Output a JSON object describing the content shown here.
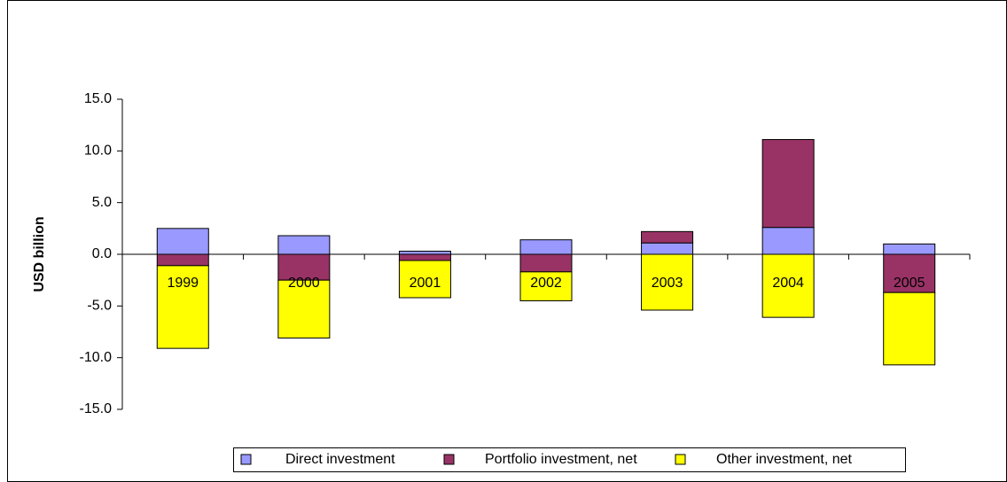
{
  "chart_data": {
    "type": "bar",
    "stacked": true,
    "y_label": "USD billion",
    "categories": [
      "1999",
      "2000",
      "2001",
      "2002",
      "2003",
      "2004",
      "2005"
    ],
    "series": [
      {
        "name": "Direct investment",
        "color": "#9999ff",
        "values": [
          2.5,
          1.8,
          0.3,
          1.4,
          1.1,
          2.6,
          1.0
        ]
      },
      {
        "name": "Portfolio investment, net",
        "color": "#993366",
        "values": [
          -1.1,
          -2.5,
          -0.6,
          -1.7,
          1.1,
          8.5,
          -3.7
        ]
      },
      {
        "name": "Other investment, net",
        "color": "#ffff00",
        "values": [
          -8.0,
          -5.6,
          -3.6,
          -2.8,
          -5.4,
          -6.1,
          -7.0
        ]
      }
    ],
    "ylim": [
      -15,
      15
    ],
    "yticks": [
      {
        "value": -15,
        "label": "-15.0"
      },
      {
        "value": -10,
        "label": "-10.0"
      },
      {
        "value": -5,
        "label": "-5.0"
      },
      {
        "value": 0,
        "label": "0.0"
      },
      {
        "value": 5,
        "label": "5.0"
      },
      {
        "value": 10,
        "label": "10.0"
      },
      {
        "value": 15,
        "label": "15.0"
      }
    ],
    "legend": "bottom"
  }
}
